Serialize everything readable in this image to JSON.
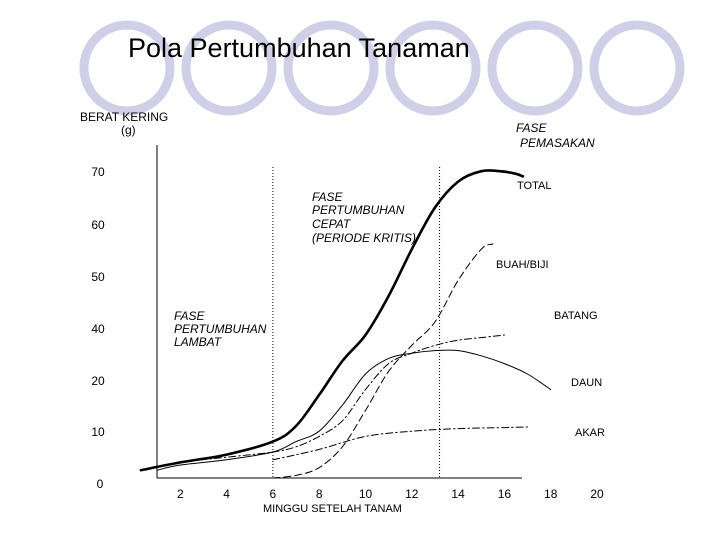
{
  "slide": {
    "title": "Pola Pertumbuhan Tanaman",
    "decoration_color": "#cfcfe8"
  },
  "chart_data": {
    "type": "line",
    "title": "Pola Pertumbuhan Tanaman",
    "xlabel": "MINGGU SETELAH TANAM",
    "ylabel": "BERAT KERING (g)",
    "x_ticks": [
      "2",
      "4",
      "6",
      "8",
      "10",
      "12",
      "14",
      "16",
      "18",
      "20"
    ],
    "y_ticks": [
      "0",
      "10",
      "20",
      "40",
      "50",
      "60",
      "70"
    ],
    "x_range": [
      0,
      21
    ],
    "y_range": [
      0,
      75
    ],
    "grid": false,
    "phase_dividers_x": [
      6,
      13.2
    ],
    "phases": [
      "FASE PERTUMBUHAN LAMBAT",
      "FASE PERTUMBUHAN CEPAT (PERIODE KRITIS)",
      "FASE PEMASAKAN"
    ],
    "series": [
      {
        "name": "TOTAL",
        "style": "solid-thick",
        "x": [
          0.3,
          2,
          4,
          6,
          7,
          8,
          9,
          10,
          11,
          12,
          13,
          14,
          15,
          15.8,
          16.5,
          16.8
        ],
        "y": [
          1.5,
          3,
          4.5,
          7,
          10,
          16,
          25,
          35,
          45,
          54,
          62,
          67,
          69,
          69,
          68.5,
          68
        ]
      },
      {
        "name": "BUAH/BIJI",
        "style": "dashed",
        "x": [
          6,
          7,
          8,
          9,
          10,
          11,
          12,
          13,
          14,
          15,
          15.5
        ],
        "y": [
          0,
          0.5,
          2,
          6,
          13,
          21,
          31,
          40,
          48,
          54,
          55
        ]
      },
      {
        "name": "BATANG",
        "style": "dash-dot",
        "x": [
          1,
          2,
          4,
          6,
          7,
          8,
          9,
          10,
          11,
          12,
          13,
          14,
          15,
          16
        ],
        "y": [
          2,
          3,
          4,
          5,
          6,
          8,
          11,
          17,
          24,
          28,
          31,
          33,
          34,
          35
        ]
      },
      {
        "name": "DAUN",
        "style": "solid-thin",
        "x": [
          1,
          2,
          4,
          6,
          7,
          8,
          9,
          10,
          11,
          12,
          13,
          14,
          15,
          16,
          17,
          18
        ],
        "y": [
          1.5,
          2.5,
          3.5,
          5,
          7,
          9,
          14,
          20,
          26,
          28,
          29,
          29,
          27,
          24,
          20,
          17
        ]
      },
      {
        "name": "AKAR",
        "style": "dash-dot",
        "x": [
          6,
          8,
          10,
          12,
          14,
          16,
          17
        ],
        "y": [
          3.5,
          5.5,
          8,
          9,
          9.5,
          9.7,
          9.8
        ]
      }
    ],
    "annotations": {
      "ylabel_line1": "BERAT KERING",
      "ylabel_line2": "(g)",
      "phase_slow_1": "FASE",
      "phase_slow_2": "PERTUMBUHAN",
      "phase_slow_3": "LAMBAT",
      "phase_fast_1": "FASE",
      "phase_fast_2": "PERTUMBUHAN",
      "phase_fast_3": "CEPAT",
      "phase_fast_4": "(PERIODE KRITIS)",
      "phase_mature_1": "FASE",
      "phase_mature_2": "PEMASAKAN"
    }
  }
}
